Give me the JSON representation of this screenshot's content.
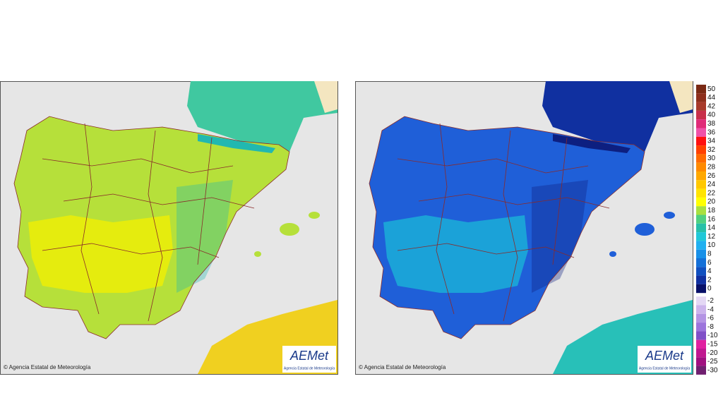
{
  "panels": [
    {
      "copyright": "© Agencia Estatal de Meteorología",
      "logo": "AEMet",
      "logo_caption": "Agencia Estatal de Meteorología",
      "land_color": "#b6e03a",
      "inland_color": "#f4f000",
      "mountain_color": "#22b8b0"
    },
    {
      "copyright": "© Agencia Estatal de Meteorología",
      "logo": "AEMet",
      "logo_caption": "Agencia Estatal de Meteorología",
      "land_color": "#1f5fd8",
      "inland_color": "#1bb8d8",
      "mountain_color": "#0d1f80"
    }
  ],
  "legend": {
    "items": [
      {
        "value": 50,
        "color": "#7a2a14"
      },
      {
        "value": 44,
        "color": "#8e2f1c"
      },
      {
        "value": 42,
        "color": "#a83a2a"
      },
      {
        "value": 40,
        "color": "#c8304a"
      },
      {
        "value": 38,
        "color": "#e02a78"
      },
      {
        "value": 36,
        "color": "#f050a8"
      },
      {
        "value": 34,
        "color": "#ff1010"
      },
      {
        "value": 32,
        "color": "#ff4000"
      },
      {
        "value": 30,
        "color": "#ff6a00"
      },
      {
        "value": 28,
        "color": "#ff8a00"
      },
      {
        "value": 26,
        "color": "#ffa800"
      },
      {
        "value": 24,
        "color": "#ffc800"
      },
      {
        "value": 22,
        "color": "#ffe400"
      },
      {
        "value": 20,
        "color": "#ffff00"
      },
      {
        "value": 18,
        "color": "#a8e040"
      },
      {
        "value": 16,
        "color": "#50d080"
      },
      {
        "value": 14,
        "color": "#28c0a8"
      },
      {
        "value": 12,
        "color": "#20c8d8"
      },
      {
        "value": 10,
        "color": "#20b0f0"
      },
      {
        "value": 8,
        "color": "#1890e8"
      },
      {
        "value": 6,
        "color": "#1470d8"
      },
      {
        "value": 4,
        "color": "#1050c0"
      },
      {
        "value": 2,
        "color": "#1030a0"
      },
      {
        "value": 0,
        "color": "#081068"
      },
      {
        "value": -2,
        "color": "#e4d8f4"
      },
      {
        "value": -4,
        "color": "#ccb4ec"
      },
      {
        "value": -6,
        "color": "#b494e4"
      },
      {
        "value": -8,
        "color": "#9c74dc"
      },
      {
        "value": -10,
        "color": "#8050c8"
      },
      {
        "value": -15,
        "color": "#e020a0"
      },
      {
        "value": -20,
        "color": "#c01890"
      },
      {
        "value": -25,
        "color": "#a01080"
      },
      {
        "value": -30,
        "color": "#702070"
      }
    ]
  }
}
